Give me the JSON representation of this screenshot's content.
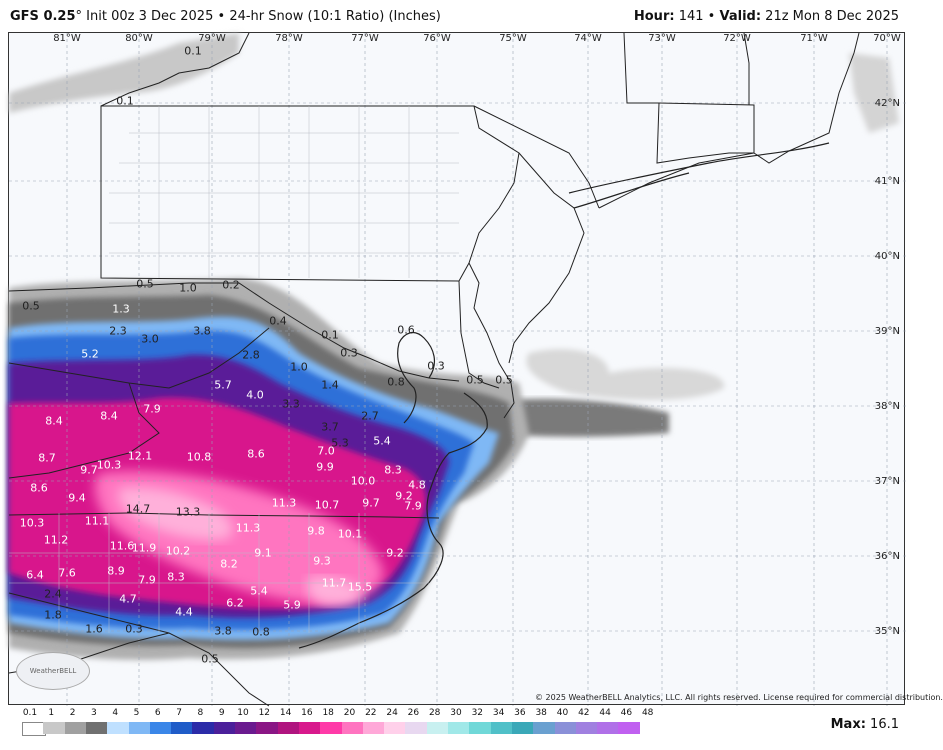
{
  "header": {
    "model": "GFS 0.25",
    "degree": "°",
    "init": "Init 00z 3 Dec 2025",
    "sep": "•",
    "product": "24-hr Snow (10:1 Ratio) (Inches)",
    "hour_label": "Hour:",
    "hour": "141",
    "valid_label": "Valid:",
    "valid": "21z Mon 8 Dec 2025"
  },
  "lon_labels": [
    "81°W",
    "80°W",
    "79°W",
    "78°W",
    "77°W",
    "76°W",
    "75°W",
    "74°W",
    "73°W",
    "72°W",
    "71°W",
    "70°W"
  ],
  "lat_labels": [
    "42°N",
    "41°N",
    "40°N",
    "39°N",
    "38°N",
    "37°N",
    "36°N",
    "35°N"
  ],
  "values": [
    "0.1",
    "0.1",
    "0.5",
    "1.0",
    "0.2",
    "0.5",
    "1.3",
    "0.4",
    "0.1",
    "2.3",
    "3.0",
    "3.8",
    "5.2",
    "0.3",
    "0.6",
    "0.3",
    "2.8",
    "1.0",
    "5.7",
    "0.5",
    "0.5",
    "1.4",
    "0.8",
    "4.0",
    "3.3",
    "8.4",
    "8.4",
    "7.9",
    "2.7",
    "3.7",
    "5.3",
    "5.4",
    "7.0",
    "8.7",
    "12.1",
    "10.8",
    "8.6",
    "9.9",
    "9.7",
    "10.3",
    "8.3",
    "8.6",
    "9.4",
    "10.0",
    "4.8",
    "9.2",
    "14.7",
    "13.3",
    "11.3",
    "10.7",
    "9.7",
    "7.9",
    "10.3",
    "11.1",
    "11.3",
    "9.8",
    "10.1",
    "11.2",
    "11.6",
    "11.9",
    "10.2",
    "9.1",
    "9.2",
    "8.2",
    "9.3",
    "6.4",
    "7.6",
    "8.9",
    "7.9",
    "8.3",
    "11.7",
    "15.5",
    "2.4",
    "4.7",
    "4.4",
    "5.4",
    "6.2",
    "5.9",
    "1.8",
    "1.6",
    "0.3",
    "3.8",
    "0.8",
    "0.5"
  ],
  "copyright": "© 2025 WeatherBELL Analytics, LLC. All rights reserved. License required for commercial distribution.",
  "logo_text": "WeatherBELL",
  "legend": {
    "ticks": [
      "0.1",
      "1",
      "2",
      "3",
      "4",
      "5",
      "6",
      "7",
      "8",
      "9",
      "10",
      "12",
      "14",
      "16",
      "18",
      "20",
      "22",
      "24",
      "26",
      "28",
      "30",
      "32",
      "34",
      "36",
      "38",
      "40",
      "42",
      "44",
      "46",
      "48"
    ],
    "colors": [
      "#ffffff",
      "#c8c8c8",
      "#a0a0a0",
      "#707070",
      "#bfe0ff",
      "#7fb8f5",
      "#3a86e8",
      "#1f5cc8",
      "#2b2ba8",
      "#4b1f9a",
      "#6a1a8f",
      "#8a1685",
      "#b0147f",
      "#d8198c",
      "#ff3aa8",
      "#ff74c0",
      "#ffa8d8",
      "#ffd0ea",
      "#e8d8f0",
      "#c8f0f0",
      "#a0e8e8",
      "#70d8d8",
      "#50c0c8",
      "#3aa8b8",
      "#6aa0d0",
      "#8a90d8",
      "#a080e0",
      "#b070e8",
      "#c060f0"
    ]
  },
  "max_label": "Max:",
  "max_value": "16.1"
}
